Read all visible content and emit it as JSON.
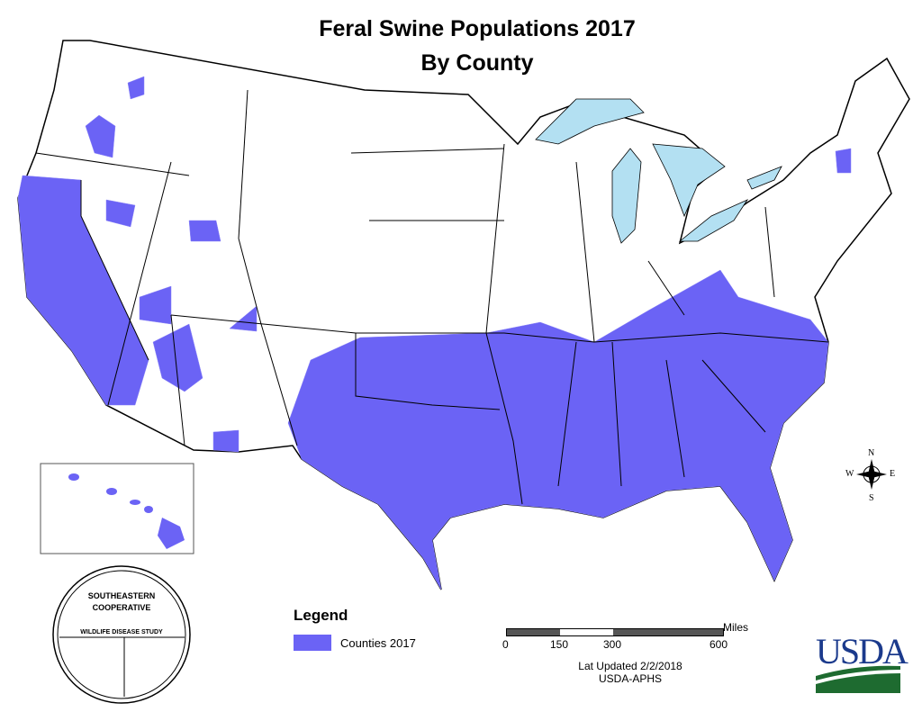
{
  "title": "Feral Swine Populations 2017",
  "subtitle": "By County",
  "legend": {
    "title": "Legend",
    "items": [
      {
        "label": "Counties 2017",
        "color": "#6b63f5"
      }
    ]
  },
  "scale_bar": {
    "unit": "Miles",
    "ticks": [
      "0",
      "150",
      "300",
      "600"
    ]
  },
  "updated": "Lat Updated 2/2/2018",
  "source": "USDA-APHS",
  "compass": {
    "n": "N",
    "s": "S",
    "e": "E",
    "w": "W"
  },
  "logos": {
    "secondary": "SOUTHEASTERN COOPERATIVE WILDLIFE DISEASE STUDY",
    "usda": "USDA"
  },
  "colors": {
    "presence": "#6b63f5",
    "water": "#b3e0f2",
    "usda_blue": "#1b3a8c",
    "usda_green": "#1e6b30"
  }
}
